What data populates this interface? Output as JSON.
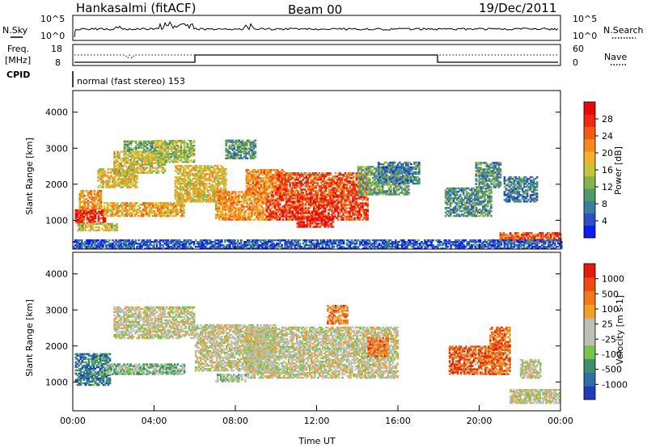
{
  "header": {
    "station": "Hankasalmi (fitACF)",
    "beam": "Beam 00",
    "date": "19/Dec/2011"
  },
  "sky_panel": {
    "left_label": "N.Sky",
    "right_label": "N.Search",
    "yticks": [
      "10^5",
      "10^0"
    ]
  },
  "freq_panel": {
    "left_label_1": "Freq.",
    "left_label_2": "[MHz]",
    "left_ticks": [
      "18",
      "8"
    ],
    "right_label": "Nave",
    "right_ticks": [
      "60",
      "0"
    ]
  },
  "cpid": {
    "label": "CPID",
    "value": "normal (fast stereo) 153"
  },
  "chart_data": [
    {
      "type": "heatmap",
      "name": "power",
      "xlabel": "Time UT",
      "ylabel": "Slant Range [km]",
      "xticks": [
        "00:00",
        "04:00",
        "08:00",
        "12:00",
        "16:00",
        "20:00",
        "00:00"
      ],
      "xlim": [
        0,
        24
      ],
      "ylim": [
        200,
        4600
      ],
      "yticks": [
        1000,
        2000,
        3000,
        4000
      ],
      "colorbar": {
        "label": "Power [dB]",
        "ticks": [
          "4",
          "8",
          "12",
          "16",
          "20",
          "24",
          "28"
        ],
        "colors": [
          "#0a1cf0",
          "#2e4fc2",
          "#3a7fa0",
          "#4f9a68",
          "#86b24e",
          "#c6c43a",
          "#f2b12a",
          "#f58a1e",
          "#f45a14",
          "#ec2a10",
          "#e60a0a"
        ]
      },
      "regions": [
        {
          "t": [
            0.1,
            1.6
          ],
          "r": [
            900,
            1300
          ],
          "v": 0.9
        },
        {
          "t": [
            0.3,
            1.4
          ],
          "r": [
            1300,
            1800
          ],
          "v": 0.65
        },
        {
          "t": [
            0.2,
            2.2
          ],
          "r": [
            700,
            900
          ],
          "v": 0.5
        },
        {
          "t": [
            1.2,
            3.2
          ],
          "r": [
            1900,
            2400
          ],
          "v": 0.55
        },
        {
          "t": [
            2.0,
            4.5
          ],
          "r": [
            2300,
            2900
          ],
          "v": 0.5
        },
        {
          "t": [
            2.5,
            4.0
          ],
          "r": [
            2900,
            3200
          ],
          "v": 0.35
        },
        {
          "t": [
            4.0,
            6.0
          ],
          "r": [
            2600,
            3200
          ],
          "v": 0.45
        },
        {
          "t": [
            1.5,
            5.5
          ],
          "r": [
            1100,
            1500
          ],
          "v": 0.6
        },
        {
          "t": [
            5.0,
            7.5
          ],
          "r": [
            1500,
            2500
          ],
          "v": 0.55
        },
        {
          "t": [
            7.0,
            9.5
          ],
          "r": [
            1000,
            1800
          ],
          "v": 0.65
        },
        {
          "t": [
            8.5,
            10.5
          ],
          "r": [
            1700,
            2400
          ],
          "v": 0.7
        },
        {
          "t": [
            9.5,
            14.5
          ],
          "r": [
            1000,
            1700
          ],
          "v": 0.85
        },
        {
          "t": [
            10.0,
            14.5
          ],
          "r": [
            1700,
            2300
          ],
          "v": 0.8
        },
        {
          "t": [
            11.0,
            12.8
          ],
          "r": [
            800,
            1100
          ],
          "v": 0.9
        },
        {
          "t": [
            14.0,
            16.5
          ],
          "r": [
            1700,
            2500
          ],
          "v": 0.35
        },
        {
          "t": [
            15.0,
            17.0
          ],
          "r": [
            2000,
            2600
          ],
          "v": 0.25
        },
        {
          "t": [
            7.5,
            9.0
          ],
          "r": [
            2700,
            3200
          ],
          "v": 0.3
        },
        {
          "t": [
            18.3,
            20.6
          ],
          "r": [
            1100,
            1900
          ],
          "v": 0.3
        },
        {
          "t": [
            19.8,
            21.0
          ],
          "r": [
            1900,
            2600
          ],
          "v": 0.3
        },
        {
          "t": [
            21.2,
            22.8
          ],
          "r": [
            1500,
            2200
          ],
          "v": 0.25
        },
        {
          "t": [
            21.0,
            24.0
          ],
          "r": [
            400,
            650
          ],
          "v": 0.8
        },
        {
          "t": [
            0.0,
            24.0
          ],
          "r": [
            200,
            450
          ],
          "v": 0.15
        }
      ]
    },
    {
      "type": "heatmap",
      "name": "velocity",
      "xlabel": "Time UT",
      "ylabel": "Slant Range [km]",
      "xticks": [
        "00:00",
        "04:00",
        "08:00",
        "12:00",
        "16:00",
        "20:00",
        "00:00"
      ],
      "xlim": [
        0,
        24
      ],
      "ylim": [
        200,
        4600
      ],
      "yticks": [
        1000,
        2000,
        3000,
        4000
      ],
      "colorbar": {
        "label": "Velocity [m s-1]",
        "ticks": [
          "1000",
          "500",
          "100",
          "25",
          "-25",
          "-100",
          "-500",
          "-1000"
        ],
        "colors": [
          "#1f3fb8",
          "#2f6fa6",
          "#3f8f6a",
          "#79c24c",
          "#bfbfb5",
          "#bfbfb5",
          "#f0a02a",
          "#f07a1a",
          "#ee4a14",
          "#e61a0c"
        ]
      },
      "regions": [
        {
          "t": [
            0.1,
            1.8
          ],
          "r": [
            900,
            1800
          ],
          "v": 0.2
        },
        {
          "t": [
            1.6,
            5.5
          ],
          "r": [
            1200,
            1500
          ],
          "v": 0.35
        },
        {
          "t": [
            2.0,
            6.0
          ],
          "r": [
            2200,
            3100
          ],
          "v": 0.5
        },
        {
          "t": [
            6.0,
            10.0
          ],
          "r": [
            1300,
            2600
          ],
          "v": 0.5
        },
        {
          "t": [
            8.5,
            16.0
          ],
          "r": [
            1100,
            2500
          ],
          "v": 0.5
        },
        {
          "t": [
            12.5,
            13.5
          ],
          "r": [
            2600,
            3100
          ],
          "v": 0.75
        },
        {
          "t": [
            14.5,
            15.5
          ],
          "r": [
            1700,
            2200
          ],
          "v": 0.75
        },
        {
          "t": [
            18.5,
            21.5
          ],
          "r": [
            1200,
            2000
          ],
          "v": 0.8
        },
        {
          "t": [
            20.5,
            21.5
          ],
          "r": [
            2000,
            2500
          ],
          "v": 0.78
        },
        {
          "t": [
            21.5,
            23.9
          ],
          "r": [
            400,
            800
          ],
          "v": 0.5
        },
        {
          "t": [
            22.0,
            23.0
          ],
          "r": [
            1100,
            1600
          ],
          "v": 0.5
        },
        {
          "t": [
            7.0,
            8.5
          ],
          "r": [
            1000,
            1200
          ],
          "v": 0.4
        }
      ]
    }
  ]
}
